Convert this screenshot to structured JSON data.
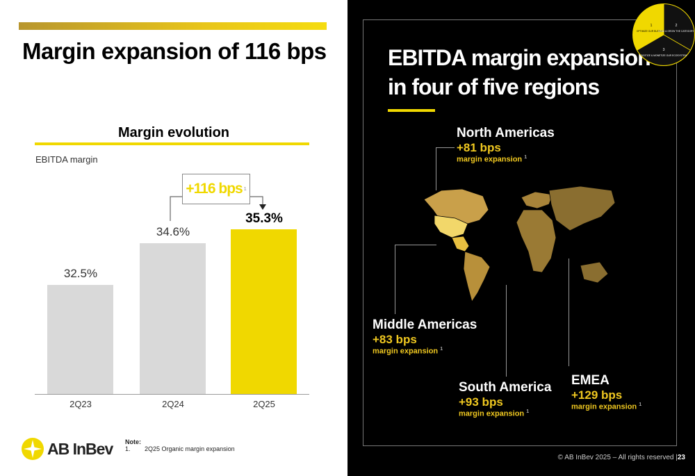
{
  "left": {
    "title": "Margin expansion of 116 bps",
    "subtitle": "Margin evolution",
    "metric_label": "EBITDA margin",
    "bps_badge": "+116 bps",
    "bps_sup": "1",
    "note_title": "Note:",
    "note_num": "1.",
    "note_text": "2Q25 Organic margin expansion",
    "logo_text": "AB InBev"
  },
  "chart_data": {
    "type": "bar",
    "categories": [
      "2Q23",
      "2Q24",
      "2Q25"
    ],
    "values": [
      32.5,
      34.6,
      35.3
    ],
    "value_labels": [
      "32.5%",
      "34.6%",
      "35.3%"
    ],
    "title": "Margin evolution",
    "ylabel": "EBITDA margin",
    "highlight_color": "#f0d800",
    "bar_color": "#d9d9d9"
  },
  "right": {
    "title_line1": "EBITDA margin expansion",
    "title_line2": "in four of five regions",
    "wheel": {
      "seg1": "OPTIMIZE OUR BUSINESS",
      "seg2": "LEAD & GROW THE CATEGORY",
      "seg3": "DIGITIZE & MONETIZE OUR ECOSYSTEM",
      "n1": "1",
      "n2": "2",
      "n3": "3"
    },
    "regions": [
      {
        "name": "North Americas",
        "bps": "+81 bps",
        "desc": "margin expansion",
        "sup": "1"
      },
      {
        "name": "Middle Americas",
        "bps": "+83 bps",
        "desc": "margin expansion",
        "sup": "1"
      },
      {
        "name": "South America",
        "bps": "+93 bps",
        "desc": "margin expansion",
        "sup": "1"
      },
      {
        "name": "EMEA",
        "bps": "+129 bps",
        "desc": "margin expansion",
        "sup": "1"
      }
    ],
    "copyright": "© AB InBev 2025 – All rights reserved |",
    "page": "23"
  },
  "colors": {
    "accent": "#f0d800",
    "gold": "#f0c820",
    "dark": "#000000"
  }
}
